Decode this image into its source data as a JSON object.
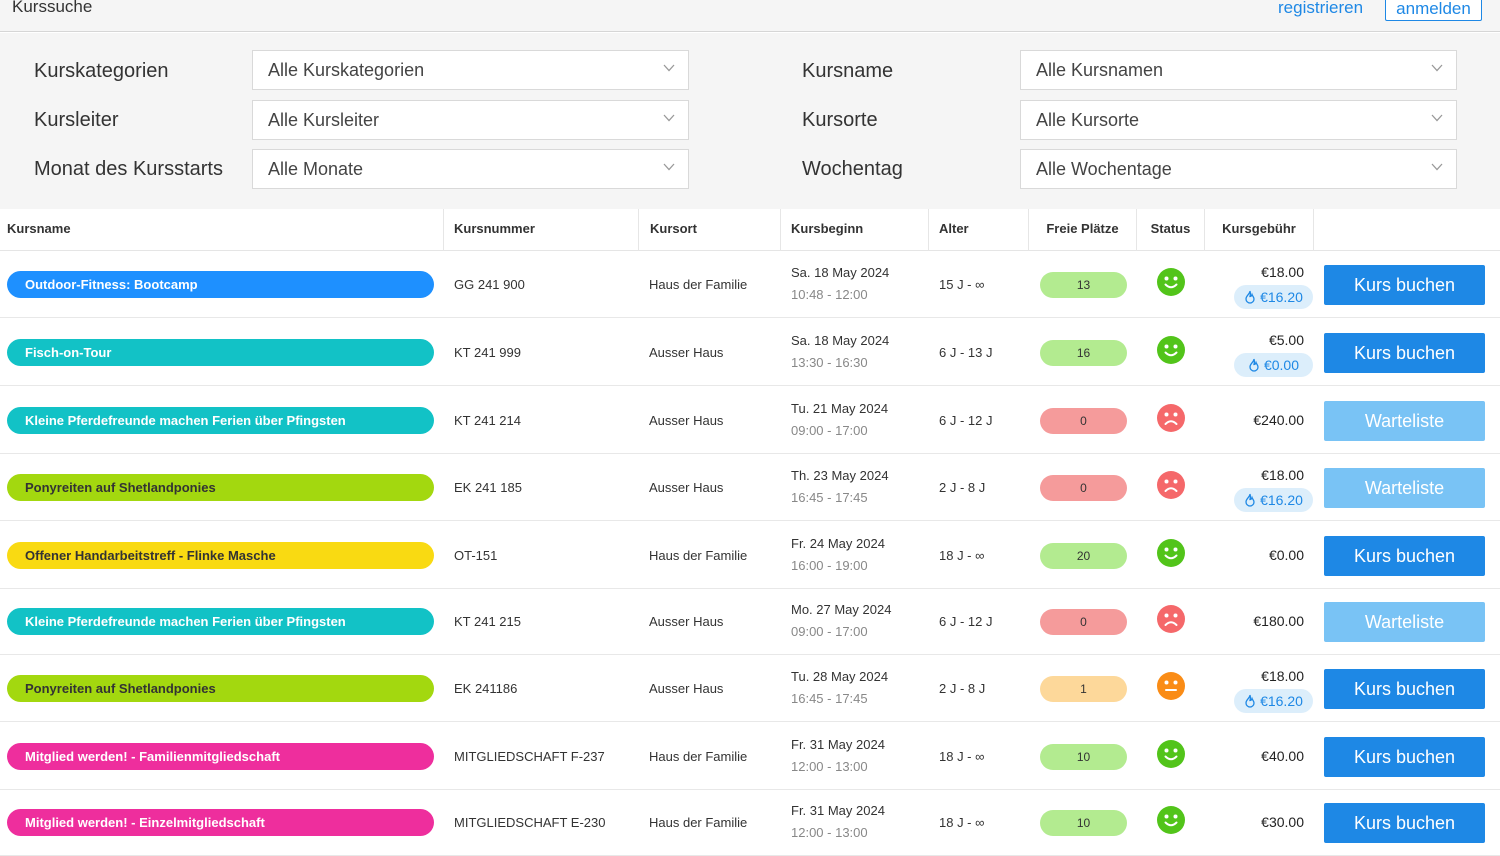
{
  "header": {
    "title": "Kurssuche",
    "register": "registrieren",
    "login": "anmelden"
  },
  "filters": [
    {
      "label": "Kurskategorien",
      "value": "Alle Kurskategorien"
    },
    {
      "label": "Kursname",
      "value": "Alle Kursnamen"
    },
    {
      "label": "Kursleiter",
      "value": "Alle Kursleiter"
    },
    {
      "label": "Kursorte",
      "value": "Alle Kursorte"
    },
    {
      "label": "Monat des Kursstarts",
      "value": "Alle Monate"
    },
    {
      "label": "Wochentag",
      "value": "Alle Wochentage"
    }
  ],
  "columns": [
    "Kursname",
    "Kursnummer",
    "Kursort",
    "Kursbeginn",
    "Alter",
    "Freie Plätze",
    "Status",
    "Kursgebühr"
  ],
  "colors": {
    "blue": "#1e90ff",
    "teal": "#12c2c6",
    "lime": "#a3d80f",
    "yellow": "#f9da12",
    "pink": "#ee2e9d",
    "seats_green": "#b3eb90",
    "seats_red": "#f59b9b",
    "seats_orange": "#fdd89a",
    "happy": "#52c41a",
    "sad": "#f5686a",
    "neutral": "#fa8c16",
    "button": "#1e88e5",
    "button_wait": "#79c3f5"
  },
  "rows": [
    {
      "name": "Outdoor-Fitness: Bootcamp",
      "color": "blue",
      "number": "GG 241 900",
      "location": "Haus der Familie",
      "date": "Sa. 18 May 2024",
      "time": "10:48 - 12:00",
      "age": "15 J - ∞",
      "seats": "13",
      "status": "happy",
      "price": "€18.00",
      "member_price": "€16.20",
      "action": "Kurs buchen"
    },
    {
      "name": "Fisch-on-Tour",
      "color": "teal",
      "number": "KT 241 999",
      "location": "Ausser Haus",
      "date": "Sa. 18 May 2024",
      "time": "13:30 - 16:30",
      "age": "6 J - 13 J",
      "seats": "16",
      "status": "happy",
      "price": "€5.00",
      "member_price": "€0.00",
      "action": "Kurs buchen"
    },
    {
      "name": "Kleine Pferdefreunde machen Ferien über Pfingsten",
      "color": "teal",
      "number": "KT 241 214",
      "location": "Ausser Haus",
      "date": "Tu. 21 May 2024",
      "time": "09:00 - 17:00",
      "age": "6 J - 12 J",
      "seats": "0",
      "status": "sad",
      "price": "€240.00",
      "member_price": null,
      "action": "Warteliste"
    },
    {
      "name": "Ponyreiten auf Shetlandponies",
      "color": "lime",
      "number": "EK 241 185",
      "location": "Ausser Haus",
      "date": "Th. 23 May 2024",
      "time": "16:45 - 17:45",
      "age": "2 J - 8 J",
      "seats": "0",
      "status": "sad",
      "price": "€18.00",
      "member_price": "€16.20",
      "action": "Warteliste"
    },
    {
      "name": "Offener Handarbeitstreff - Flinke Masche",
      "color": "yellow",
      "number": "OT-151",
      "location": "Haus der Familie",
      "date": "Fr. 24 May 2024",
      "time": "16:00 - 19:00",
      "age": "18 J - ∞",
      "seats": "20",
      "status": "happy",
      "price": "€0.00",
      "member_price": null,
      "action": "Kurs buchen"
    },
    {
      "name": "Kleine Pferdefreunde machen Ferien über Pfingsten",
      "color": "teal",
      "number": "KT 241 215",
      "location": "Ausser Haus",
      "date": "Mo. 27 May 2024",
      "time": "09:00 - 17:00",
      "age": "6 J - 12 J",
      "seats": "0",
      "status": "sad",
      "price": "€180.00",
      "member_price": null,
      "action": "Warteliste"
    },
    {
      "name": "Ponyreiten auf Shetlandponies",
      "color": "lime",
      "number": "EK 241186",
      "location": "Ausser Haus",
      "date": "Tu. 28 May 2024",
      "time": "16:45 - 17:45",
      "age": "2 J - 8 J",
      "seats": "1",
      "status": "neutral",
      "price": "€18.00",
      "member_price": "€16.20",
      "action": "Kurs buchen"
    },
    {
      "name": "Mitglied werden! - Familienmitgliedschaft",
      "color": "pink",
      "number": "MITGLIEDSCHAFT F-237",
      "location": "Haus der Familie",
      "date": "Fr. 31 May 2024",
      "time": "12:00 - 13:00",
      "age": "18 J - ∞",
      "seats": "10",
      "status": "happy",
      "price": "€40.00",
      "member_price": null,
      "action": "Kurs buchen"
    },
    {
      "name": "Mitglied werden! - Einzelmitgliedschaft",
      "color": "pink",
      "number": "MITGLIEDSCHAFT E-230",
      "location": "Haus der Familie",
      "date": "Fr. 31 May 2024",
      "time": "12:00 - 13:00",
      "age": "18 J - ∞",
      "seats": "10",
      "status": "happy",
      "price": "€30.00",
      "member_price": null,
      "action": "Kurs buchen"
    }
  ]
}
